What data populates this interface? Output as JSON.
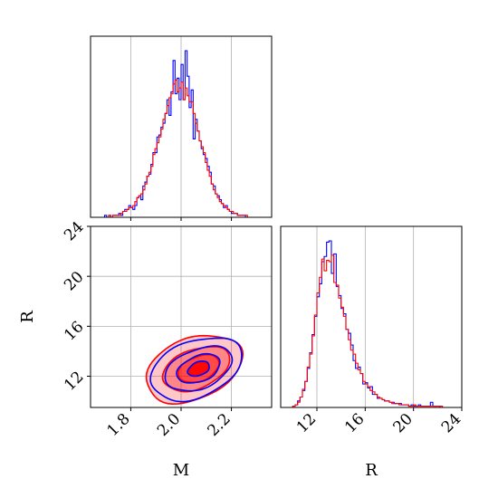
{
  "colors": {
    "series_a": "#0000ff",
    "series_b": "#ff0000",
    "fill_b": "#ff0000",
    "grid": "#b0b0b0"
  },
  "chart_data": [
    {
      "type": "histogram",
      "panel": "top-left",
      "xlim": [
        1.64,
        2.36
      ],
      "x_ticks": [
        1.8,
        2.0,
        2.2
      ],
      "show_x_tick_labels": false,
      "grid": true,
      "bins": {
        "start": 1.64,
        "width": 0.008,
        "count": 90
      },
      "series": [
        {
          "color": "#0000ff",
          "values": [
            0,
            0,
            0,
            0,
            0,
            0,
            0,
            1,
            0,
            1,
            0,
            1,
            1,
            1,
            2,
            1,
            2,
            3,
            3,
            5,
            6,
            5,
            7,
            9,
            11,
            10,
            15,
            17,
            20,
            23,
            26,
            31,
            35,
            38,
            41,
            44,
            47,
            52,
            58,
            55,
            60,
            72,
            80,
            62,
            68,
            75,
            70,
            66,
            74,
            73,
            56,
            58,
            48,
            44,
            40,
            37,
            33,
            30,
            26,
            22,
            18,
            15,
            13,
            10,
            8,
            7,
            5,
            5,
            4,
            3,
            2,
            2,
            2,
            1,
            1,
            1,
            1,
            0,
            0,
            0,
            0,
            0,
            0,
            0,
            0,
            0,
            0,
            0,
            0,
            0
          ],
          "raw_values": [
            0,
            0,
            0,
            0,
            0,
            0,
            0,
            1,
            0,
            1,
            0,
            1,
            1,
            1,
            2,
            1,
            3,
            4,
            4,
            6,
            5,
            4,
            6,
            10,
            11,
            9,
            16,
            18,
            21,
            22,
            27,
            33,
            33,
            41,
            42,
            46,
            48,
            53,
            60,
            52,
            64,
            80,
            63,
            71,
            60,
            78,
            60,
            85,
            72,
            56,
            65,
            40,
            50,
            44,
            39,
            35,
            32,
            30,
            26,
            23,
            17,
            16,
            12,
            11,
            9,
            7,
            5,
            6,
            4,
            3,
            2,
            2,
            2,
            1,
            1,
            1,
            1,
            0,
            0,
            0,
            0,
            0,
            0,
            0,
            0,
            0,
            0,
            0,
            0,
            0
          ]
        },
        {
          "color": "#ff0000",
          "values": [
            0,
            0,
            0,
            0,
            0,
            0,
            0,
            0,
            0,
            1,
            0,
            1,
            1,
            1,
            1,
            2,
            2,
            3,
            4,
            5,
            6,
            6,
            8,
            9,
            11,
            12,
            14,
            17,
            20,
            23,
            27,
            31,
            35,
            38,
            42,
            45,
            49,
            53,
            58,
            60,
            63,
            66,
            68,
            66,
            64,
            67,
            63,
            62,
            63,
            61,
            57,
            53,
            48,
            44,
            40,
            36,
            32,
            28,
            24,
            20,
            17,
            14,
            12,
            10,
            8,
            7,
            6,
            5,
            4,
            3,
            3,
            2,
            2,
            1,
            1,
            1,
            1,
            1,
            0,
            0,
            0,
            0,
            0,
            0,
            0,
            0,
            0,
            0,
            0,
            0
          ],
          "raw_values": [
            0,
            0,
            0,
            0,
            0,
            0,
            0,
            0,
            0,
            1,
            0,
            1,
            1,
            1,
            1,
            2,
            3,
            3,
            4,
            5,
            5,
            6,
            8,
            10,
            11,
            12,
            14,
            17,
            21,
            23,
            26,
            32,
            35,
            38,
            41,
            45,
            50,
            53,
            57,
            61,
            63,
            68,
            70,
            64,
            66,
            69,
            60,
            66,
            62,
            59,
            59,
            53,
            48,
            44,
            39,
            36,
            33,
            28,
            24,
            21,
            17,
            14,
            12,
            10,
            8,
            7,
            6,
            5,
            4,
            3,
            3,
            2,
            2,
            1,
            1,
            1,
            1,
            1,
            0,
            0,
            0,
            0,
            0,
            0,
            0,
            0,
            0,
            0,
            0,
            0
          ]
        }
      ]
    },
    {
      "type": "contour",
      "panel": "bottom-left",
      "xlabel": "M",
      "ylabel": "R",
      "xlim": [
        1.64,
        2.36
      ],
      "ylim": [
        9.5,
        24
      ],
      "x_ticks": [
        "1.8",
        "2.0",
        "2.2"
      ],
      "y_ticks": [
        "12",
        "16",
        "20",
        "24"
      ],
      "grid": true,
      "series": [
        {
          "color": "#0000ff",
          "filled": false,
          "levels": [
            {
              "center": [
                2.06,
                12.6
              ],
              "spread": [
                0.19,
                2.3
              ],
              "rotation": 0.18
            },
            {
              "center": [
                2.07,
                12.6
              ],
              "spread": [
                0.14,
                1.6
              ],
              "rotation": 0.18
            },
            {
              "center": [
                2.07,
                12.6
              ],
              "spread": [
                0.09,
                1.05
              ],
              "rotation": 0.18
            },
            {
              "center": [
                2.07,
                12.6
              ],
              "spread": [
                0.045,
                0.55
              ],
              "rotation": 0.18
            }
          ]
        },
        {
          "color": "#ff0000",
          "filled": true,
          "levels": [
            {
              "center": [
                2.05,
                12.6
              ],
              "spread": [
                0.2,
                2.5
              ],
              "rotation": 0.18
            },
            {
              "center": [
                2.06,
                12.6
              ],
              "spread": [
                0.14,
                1.6
              ],
              "rotation": 0.18
            },
            {
              "center": [
                2.07,
                12.6
              ],
              "spread": [
                0.085,
                1.0
              ],
              "rotation": 0.18
            },
            {
              "center": [
                2.07,
                12.6
              ],
              "spread": [
                0.04,
                0.5
              ],
              "rotation": 0.18
            }
          ]
        }
      ]
    },
    {
      "type": "histogram",
      "panel": "bottom-right",
      "xlabel": "R",
      "xlim": [
        9,
        24
      ],
      "x_ticks": [
        "12",
        "16",
        "20",
        "24"
      ],
      "grid": true,
      "bins": {
        "start": 9.0,
        "width": 0.2,
        "count": 75
      },
      "series": [
        {
          "color": "#0000ff",
          "values": [
            0,
            0,
            0,
            0,
            0,
            1,
            2,
            5,
            9,
            14,
            19,
            28,
            40,
            55,
            72,
            88,
            110,
            120,
            125,
            140,
            125,
            120,
            110,
            97,
            85,
            76,
            70,
            62,
            55,
            44,
            38,
            32,
            28,
            24,
            20,
            17,
            15,
            13,
            11,
            9,
            8,
            7,
            6,
            5,
            5,
            4,
            4,
            3,
            3,
            3,
            2,
            2,
            2,
            2,
            2,
            1,
            1,
            1,
            1,
            1,
            1,
            1,
            1,
            1,
            1,
            1,
            0,
            0,
            0,
            0,
            0,
            0,
            0,
            0,
            0
          ],
          "raw_values": [
            0,
            0,
            0,
            0,
            0,
            1,
            2,
            5,
            8,
            13,
            20,
            30,
            42,
            56,
            70,
            85,
            95,
            112,
            116,
            127,
            128,
            103,
            118,
            93,
            86,
            76,
            72,
            60,
            57,
            48,
            36,
            30,
            31,
            26,
            18,
            19,
            15,
            16,
            10,
            10,
            7,
            7,
            6,
            5,
            5,
            4,
            4,
            3,
            3,
            3,
            2,
            2,
            2,
            1,
            2,
            1,
            1,
            2,
            1,
            1,
            1,
            1,
            4,
            1,
            1,
            1,
            0,
            0,
            0,
            0,
            0,
            0,
            0,
            0,
            0
          ]
        },
        {
          "color": "#ff0000",
          "values": [
            0,
            0,
            0,
            0,
            0,
            1,
            2,
            4,
            9,
            14,
            20,
            30,
            42,
            56,
            72,
            86,
            100,
            108,
            112,
            113,
            112,
            108,
            100,
            92,
            84,
            76,
            68,
            60,
            52,
            45,
            39,
            34,
            29,
            25,
            21,
            18,
            16,
            13,
            11,
            10,
            8,
            7,
            6,
            5,
            4,
            4,
            3,
            3,
            3,
            2,
            2,
            2,
            2,
            2,
            1,
            1,
            1,
            1,
            1,
            1,
            1,
            1,
            1,
            1,
            1,
            1,
            1,
            0,
            0,
            0,
            0,
            0,
            0,
            0,
            0
          ],
          "raw_values": [
            0,
            0,
            0,
            0,
            0,
            1,
            2,
            4,
            8,
            14,
            20,
            31,
            41,
            55,
            71,
            88,
            100,
            114,
            105,
            113,
            112,
            117,
            96,
            94,
            84,
            77,
            70,
            60,
            52,
            44,
            41,
            34,
            29,
            26,
            20,
            18,
            16,
            13,
            12,
            10,
            8,
            7,
            6,
            5,
            5,
            4,
            3,
            3,
            3,
            2,
            2,
            2,
            2,
            1,
            1,
            2,
            1,
            1,
            1,
            1,
            1,
            1,
            1,
            1,
            1,
            1,
            1,
            0,
            0,
            0,
            0,
            0,
            0,
            0,
            0
          ]
        }
      ]
    }
  ]
}
